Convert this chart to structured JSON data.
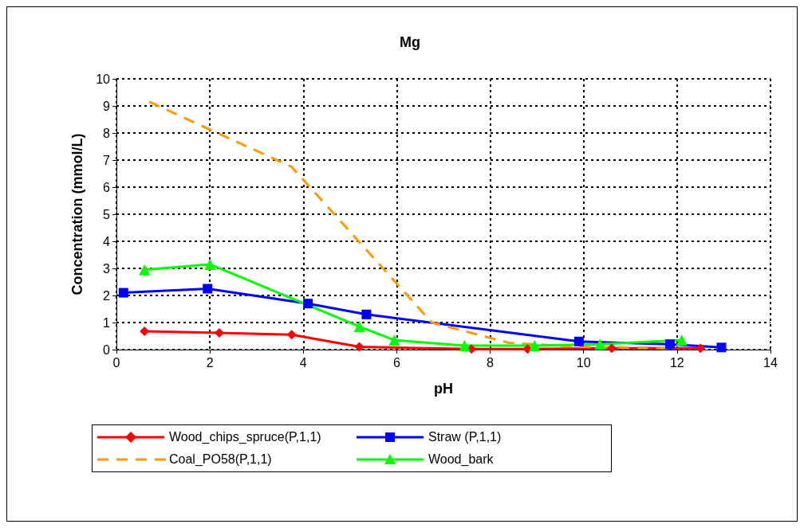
{
  "chart_data": {
    "type": "line",
    "title": "Mg",
    "xlabel": "pH",
    "ylabel": "Concentration (mmol/L)",
    "xlim": [
      0,
      14
    ],
    "xticks": [
      0,
      2,
      4,
      6,
      8,
      10,
      12,
      14
    ],
    "ylim": [
      0,
      10
    ],
    "yticks": [
      0,
      1,
      2,
      3,
      4,
      5,
      6,
      7,
      8,
      9,
      10
    ],
    "grid": true,
    "legend": "bottom",
    "series": [
      {
        "name": "Wood_chips_spruce(P,1,1)",
        "color": "#ff0000",
        "marker": "diamond",
        "line_style": "solid",
        "x": [
          0.6,
          2.2,
          3.75,
          5.2,
          7.6,
          8.8,
          10.6,
          12.5
        ],
        "values": [
          0.68,
          0.62,
          0.55,
          0.1,
          0.02,
          0.02,
          0.05,
          0.05
        ]
      },
      {
        "name": "Straw (P,1,1)",
        "color": "#0000ff",
        "marker": "square",
        "line_style": "solid",
        "x": [
          0.15,
          1.95,
          4.1,
          5.35,
          9.9,
          11.85,
          12.95
        ],
        "values": [
          2.1,
          2.25,
          1.7,
          1.3,
          0.3,
          0.2,
          0.08
        ]
      },
      {
        "name": "Coal_PO58(P,1,1)",
        "color": "#ff9900",
        "marker": "none",
        "line_style": "dashed",
        "x": [
          0.7,
          3.75,
          6.75,
          8.4,
          9.9,
          11.9
        ],
        "values": [
          9.15,
          6.75,
          1.0,
          0.25,
          0.1,
          0.05
        ]
      },
      {
        "name": "Wood_bark",
        "color": "#00ff00",
        "marker": "triangle",
        "line_style": "solid",
        "x": [
          0.6,
          2.0,
          5.2,
          5.95,
          7.45,
          8.95,
          10.35,
          12.1
        ],
        "values": [
          2.95,
          3.15,
          0.85,
          0.35,
          0.15,
          0.15,
          0.2,
          0.35
        ]
      }
    ]
  }
}
